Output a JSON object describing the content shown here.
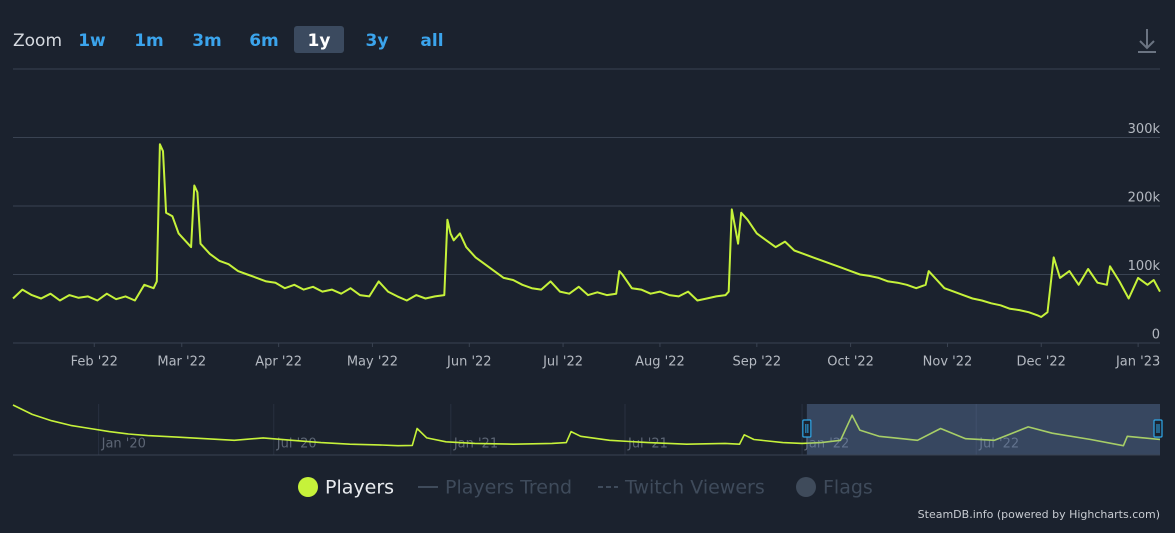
{
  "toolbar": {
    "zoom_label": "Zoom",
    "buttons": [
      "1w",
      "1m",
      "3m",
      "6m",
      "1y",
      "3y",
      "all"
    ],
    "selected_index": 4
  },
  "chart_data": [
    {
      "type": "line",
      "x": [
        5,
        8,
        11,
        14,
        17,
        20,
        23,
        26,
        29,
        32,
        35,
        38,
        41,
        44,
        47,
        50,
        51,
        52,
        53,
        54,
        56,
        58,
        60,
        62,
        63,
        64,
        65,
        68,
        71,
        74,
        77,
        80,
        83,
        86,
        89,
        92,
        95,
        98,
        101,
        104,
        107,
        110,
        113,
        116,
        119,
        122,
        125,
        128,
        131,
        134,
        137,
        140,
        143,
        144,
        145,
        146,
        148,
        150,
        153,
        156,
        159,
        162,
        165,
        168,
        171,
        174,
        177,
        180,
        183,
        186,
        189,
        192,
        195,
        198,
        199,
        200,
        203,
        206,
        209,
        212,
        215,
        218,
        221,
        224,
        227,
        230,
        233,
        234,
        235,
        236,
        237,
        238,
        240,
        243,
        246,
        249,
        252,
        255,
        258,
        261,
        264,
        267,
        270,
        273,
        276,
        279,
        282,
        285,
        288,
        291,
        294,
        297,
        298,
        300,
        303,
        306,
        309,
        312,
        315,
        318,
        321,
        324,
        327,
        330,
        333,
        334,
        336,
        338,
        340,
        343,
        346,
        349,
        352,
        355,
        356,
        359,
        362,
        365,
        368,
        370,
        372
      ],
      "series": [
        {
          "name": "Players",
          "color": "#c6f23a",
          "symbol": "circle",
          "values": [
            65000,
            78000,
            70000,
            65000,
            72000,
            62000,
            70000,
            66000,
            68000,
            62000,
            72000,
            64000,
            68000,
            62000,
            85000,
            80000,
            90000,
            290000,
            280000,
            190000,
            185000,
            160000,
            150000,
            140000,
            230000,
            220000,
            145000,
            130000,
            120000,
            115000,
            105000,
            100000,
            95000,
            90000,
            88000,
            80000,
            85000,
            78000,
            82000,
            75000,
            78000,
            72000,
            80000,
            70000,
            68000,
            90000,
            75000,
            68000,
            62000,
            70000,
            65000,
            68000,
            70000,
            180000,
            160000,
            150000,
            160000,
            140000,
            125000,
            115000,
            105000,
            95000,
            92000,
            85000,
            80000,
            78000,
            90000,
            75000,
            72000,
            82000,
            70000,
            74000,
            70000,
            72000,
            105000,
            100000,
            80000,
            78000,
            72000,
            75000,
            70000,
            68000,
            75000,
            62000,
            65000,
            68000,
            70000,
            75000,
            195000,
            170000,
            145000,
            190000,
            180000,
            160000,
            150000,
            140000,
            148000,
            135000,
            130000,
            125000,
            120000,
            115000,
            110000,
            105000,
            100000,
            98000,
            95000,
            90000,
            88000,
            85000,
            80000,
            85000,
            105000,
            95000,
            80000,
            75000,
            70000,
            65000,
            62000,
            58000,
            55000,
            50000,
            48000,
            45000,
            40000,
            38000,
            45000,
            125000,
            95000,
            105000,
            85000,
            108000,
            88000,
            85000,
            112000,
            90000,
            65000,
            95000,
            85000,
            92000,
            75000
          ]
        }
      ],
      "hidden_series": [
        {
          "name": "Players Trend",
          "color": "#3f4b5b",
          "symbol": "line"
        },
        {
          "name": "Twitch Viewers",
          "color": "#3f4b5b",
          "symbol": "dash-line"
        },
        {
          "name": "Flags",
          "color": "#3f4b5b",
          "symbol": "circle"
        }
      ],
      "xlim": [
        5,
        372
      ],
      "xticks": [
        {
          "value": 31,
          "label": "Feb '22"
        },
        {
          "value": 59,
          "label": "Mar '22"
        },
        {
          "value": 90,
          "label": "Apr '22"
        },
        {
          "value": 120,
          "label": "May '22"
        },
        {
          "value": 151,
          "label": "Jun '22"
        },
        {
          "value": 181,
          "label": "Jul '22"
        },
        {
          "value": 212,
          "label": "Aug '22"
        },
        {
          "value": 243,
          "label": "Sep '22"
        },
        {
          "value": 273,
          "label": "Oct '22"
        },
        {
          "value": 304,
          "label": "Nov '22"
        },
        {
          "value": 334,
          "label": "Dec '22"
        },
        {
          "value": 365,
          "label": "Jan '23"
        }
      ],
      "ylim": [
        0,
        400000
      ],
      "yticks": [
        0,
        {
          "value": 100000,
          "label": "100k"
        },
        {
          "value": 200000,
          "label": "200k"
        },
        {
          "value": 300000,
          "label": "300k"
        }
      ],
      "grid": true,
      "legend": "bottom"
    },
    {
      "type": "line",
      "x": [
        -820,
        -800,
        -780,
        -760,
        -740,
        -720,
        -700,
        -680,
        -650,
        -620,
        -590,
        -560,
        -530,
        -500,
        -470,
        -440,
        -420,
        -405,
        -400,
        -390,
        -370,
        -340,
        -300,
        -260,
        -245,
        -240,
        -230,
        -200,
        -160,
        -120,
        -80,
        -65,
        -60,
        -50,
        -20,
        0,
        20,
        40,
        52,
        60,
        80,
        120,
        144,
        170,
        200,
        235,
        260,
        300,
        334,
        338,
        372
      ],
      "values": [
        300000,
        240000,
        200000,
        170000,
        150000,
        130000,
        115000,
        105000,
        95000,
        85000,
        75000,
        90000,
        75000,
        60000,
        50000,
        45000,
        40000,
        42000,
        150000,
        90000,
        65000,
        55000,
        50000,
        55000,
        60000,
        130000,
        100000,
        75000,
        60000,
        50000,
        55000,
        50000,
        110000,
        80000,
        60000,
        55000,
        60000,
        75000,
        235000,
        140000,
        100000,
        75000,
        150000,
        85000,
        75000,
        160000,
        120000,
        80000,
        40000,
        100000,
        80000
      ],
      "color": "#c6f23a",
      "xlim": [
        -820,
        372
      ],
      "xticks": [
        {
          "value": -731,
          "label": "Jan '20"
        },
        {
          "value": -549,
          "label": "Jul '20"
        },
        {
          "value": -365,
          "label": "Jan '21"
        },
        {
          "value": -184,
          "label": "Jul '21"
        },
        {
          "value": 0,
          "label": "Jan '22"
        },
        {
          "value": 181,
          "label": "Jul '22"
        }
      ],
      "ylim": [
        0,
        300000
      ]
    }
  ],
  "credits": "SteamDB.info (powered by Highcharts.com)"
}
